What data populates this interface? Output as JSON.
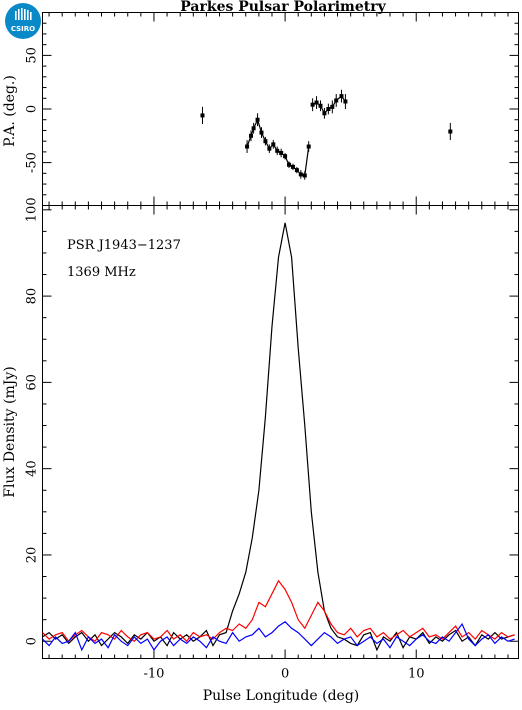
{
  "logo": {
    "text": "CSIRO",
    "color": "#0a89c9"
  },
  "chart_data": [
    {
      "panel": "position-angle",
      "type": "scatter",
      "title": "Parkes Pulsar Polarimetry",
      "xlabel": "",
      "ylabel": "P.A. (deg.)",
      "xlim": [
        -18.5,
        17.8
      ],
      "ylim": [
        -90,
        90
      ],
      "yticks": [
        -50,
        0,
        50
      ],
      "grid": false,
      "points": [
        {
          "x": -6.3,
          "y": -6,
          "err": 8
        },
        {
          "x": -2.9,
          "y": -35,
          "err": 6
        },
        {
          "x": -2.6,
          "y": -25,
          "err": 5
        },
        {
          "x": -2.4,
          "y": -18,
          "err": 5
        },
        {
          "x": -2.1,
          "y": -10,
          "err": 6
        },
        {
          "x": -1.8,
          "y": -22,
          "err": 5
        },
        {
          "x": -1.5,
          "y": -30,
          "err": 4
        },
        {
          "x": -1.2,
          "y": -37,
          "err": 4
        },
        {
          "x": -0.9,
          "y": -33,
          "err": 4
        },
        {
          "x": -0.6,
          "y": -39,
          "err": 4
        },
        {
          "x": -0.3,
          "y": -41,
          "err": 4
        },
        {
          "x": 0.0,
          "y": -44,
          "err": 3
        },
        {
          "x": 0.3,
          "y": -52,
          "err": 3
        },
        {
          "x": 0.6,
          "y": -54,
          "err": 3
        },
        {
          "x": 0.9,
          "y": -57,
          "err": 3
        },
        {
          "x": 1.2,
          "y": -61,
          "err": 4
        },
        {
          "x": 1.5,
          "y": -62,
          "err": 4
        },
        {
          "x": 1.8,
          "y": -35,
          "err": 5
        },
        {
          "x": 2.1,
          "y": 4,
          "err": 6
        },
        {
          "x": 2.4,
          "y": 6,
          "err": 6
        },
        {
          "x": 2.7,
          "y": 3,
          "err": 5
        },
        {
          "x": 3.0,
          "y": -4,
          "err": 5
        },
        {
          "x": 3.3,
          "y": 0,
          "err": 5
        },
        {
          "x": 3.6,
          "y": 2,
          "err": 6
        },
        {
          "x": 3.9,
          "y": 8,
          "err": 6
        },
        {
          "x": 4.3,
          "y": 12,
          "err": 6
        },
        {
          "x": 4.6,
          "y": 7,
          "err": 7
        },
        {
          "x": 12.6,
          "y": -21,
          "err": 8
        }
      ],
      "connected_segments": [
        [
          1,
          17
        ],
        [
          18,
          26
        ]
      ]
    },
    {
      "panel": "flux-density",
      "type": "line",
      "title": "",
      "xlabel": "Pulse Longitude (deg)",
      "ylabel": "Flux Density (mJy)",
      "xlim": [
        -18.5,
        17.8
      ],
      "ylim": [
        -4,
        101
      ],
      "xticks": [
        -10,
        0,
        10
      ],
      "yticks": [
        0,
        20,
        40,
        60,
        80,
        100
      ],
      "grid": false,
      "annotations": [
        "PSR J1943−1237",
        "1369 MHz"
      ],
      "x": [
        -18.5,
        -18.0,
        -17.5,
        -17.0,
        -16.5,
        -16.0,
        -15.5,
        -15.0,
        -14.5,
        -14.0,
        -13.5,
        -13.0,
        -12.5,
        -12.0,
        -11.5,
        -11.0,
        -10.5,
        -10.0,
        -9.5,
        -9.0,
        -8.5,
        -8.0,
        -7.5,
        -7.0,
        -6.5,
        -6.0,
        -5.5,
        -5.0,
        -4.5,
        -4.0,
        -3.5,
        -3.0,
        -2.5,
        -2.0,
        -1.5,
        -1.0,
        -0.5,
        0.0,
        0.5,
        1.0,
        1.5,
        2.0,
        2.5,
        3.0,
        3.5,
        4.0,
        4.5,
        5.0,
        5.5,
        6.0,
        6.5,
        7.0,
        7.5,
        8.0,
        8.5,
        9.0,
        9.5,
        10.0,
        10.5,
        11.0,
        11.5,
        12.0,
        12.5,
        13.0,
        13.5,
        14.0,
        14.5,
        15.0,
        15.5,
        16.0,
        16.5,
        17.0,
        17.5
      ],
      "series": [
        {
          "color": "#000000",
          "values": [
            1.0,
            2.0,
            0.5,
            1.5,
            -0.5,
            1.0,
            2.0,
            0.0,
            1.5,
            -1.0,
            0.5,
            2.0,
            1.0,
            -0.5,
            1.5,
            0.5,
            2.0,
            0.0,
            1.0,
            -1.0,
            2.0,
            0.5,
            1.5,
            0.0,
            1.0,
            2.5,
            -1.0,
            1.5,
            2.0,
            7.0,
            11.0,
            16.0,
            24.0,
            35.0,
            52.0,
            73.0,
            89.0,
            97.0,
            89.0,
            68.0,
            50.0,
            30.0,
            16.0,
            7.0,
            3.0,
            1.0,
            0.5,
            -0.5,
            -1.0,
            1.5,
            2.0,
            -2.0,
            1.0,
            0.0,
            2.0,
            -1.5,
            1.0,
            0.5,
            2.0,
            -0.5,
            1.0,
            0.0,
            1.5,
            2.5,
            0.0,
            1.0,
            -1.0,
            1.5,
            0.5,
            2.0,
            0.5,
            1.0,
            1.5
          ]
        },
        {
          "color": "#ff0000",
          "values": [
            2.0,
            0.5,
            1.5,
            2.0,
            0.0,
            1.5,
            2.5,
            1.0,
            0.0,
            2.0,
            1.5,
            0.5,
            2.5,
            1.0,
            0.0,
            1.5,
            2.0,
            0.5,
            1.0,
            2.5,
            0.5,
            1.5,
            0.0,
            2.0,
            1.0,
            1.5,
            0.5,
            2.0,
            3.0,
            2.5,
            4.0,
            3.0,
            5.0,
            9.0,
            8.0,
            11.0,
            14.0,
            12.0,
            9.0,
            5.0,
            3.0,
            6.0,
            9.0,
            7.0,
            4.0,
            2.0,
            1.5,
            3.0,
            1.0,
            2.5,
            3.0,
            1.0,
            2.0,
            0.5,
            1.5,
            2.5,
            1.0,
            2.0,
            3.0,
            1.0,
            1.5,
            0.5,
            2.0,
            3.5,
            1.0,
            2.0,
            0.5,
            2.5,
            1.5,
            0.5,
            2.0,
            1.0,
            1.5
          ]
        },
        {
          "color": "#0000ff",
          "values": [
            0.5,
            -1.0,
            1.0,
            -0.5,
            0.0,
            2.0,
            -2.0,
            1.0,
            -0.5,
            0.5,
            -1.5,
            1.5,
            0.0,
            -1.0,
            1.0,
            -0.5,
            0.5,
            -2.0,
            0.0,
            1.0,
            -1.0,
            0.5,
            -0.5,
            1.0,
            0.0,
            -1.5,
            1.0,
            0.0,
            -0.5,
            2.0,
            0.0,
            1.0,
            1.5,
            3.0,
            1.0,
            2.0,
            3.5,
            4.5,
            3.0,
            2.0,
            0.5,
            -1.0,
            0.5,
            2.0,
            1.0,
            -0.5,
            0.5,
            1.0,
            -1.0,
            0.0,
            1.0,
            -0.5,
            0.5,
            -1.5,
            1.0,
            0.0,
            -1.0,
            0.5,
            1.5,
            0.0,
            -0.5,
            1.0,
            0.0,
            2.0,
            4.0,
            0.5,
            -1.0,
            0.5,
            1.5,
            -0.5,
            1.0,
            0.0,
            0.5
          ]
        }
      ]
    }
  ]
}
